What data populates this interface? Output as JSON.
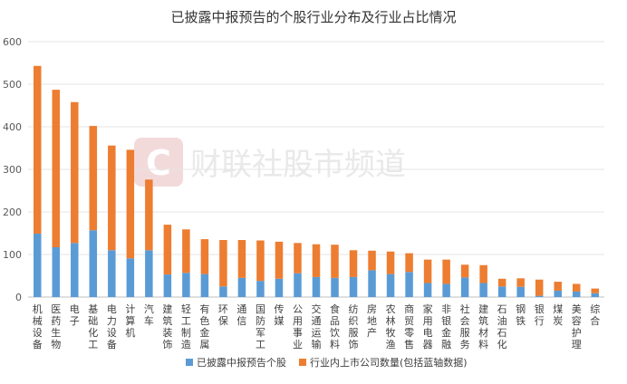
{
  "chart_data": {
    "type": "bar",
    "stacked": true,
    "title": "已披露中报预告的个股行业分布及行业占比情况",
    "ylim": [
      0,
      600
    ],
    "yticks": [
      0,
      100,
      200,
      300,
      400,
      500,
      600
    ],
    "categories": [
      "机械设备",
      "医药生物",
      "电子",
      "基础化工",
      "电力设备",
      "计算机",
      "汽车",
      "建筑装饰",
      "轻工制造",
      "有色金属",
      "环保",
      "通信",
      "国防军工",
      "传媒",
      "公用事业",
      "交通运输",
      "食品饮料",
      "纺织服饰",
      "房地产",
      "农林牧渔",
      "商贸零售",
      "家用电器",
      "非银金融",
      "社会服务",
      "建筑材料",
      "石油石化",
      "钢铁",
      "银行",
      "煤炭",
      "美容护理",
      "综合"
    ],
    "series": [
      {
        "name": "已披露中报预告个股",
        "color": "#5b9bd5",
        "values": [
          149,
          117,
          127,
          157,
          110,
          91,
          110,
          53,
          57,
          54,
          25,
          45,
          38,
          43,
          56,
          47,
          45,
          47,
          63,
          54,
          59,
          33,
          31,
          46,
          33,
          25,
          24,
          3,
          15,
          13,
          9
        ]
      },
      {
        "name": "行业内上市公司数量(包括蓝轴数据)",
        "color": "#ed7d31",
        "values": [
          394,
          370,
          331,
          245,
          246,
          255,
          166,
          117,
          102,
          82,
          109,
          89,
          95,
          87,
          71,
          77,
          78,
          63,
          46,
          53,
          44,
          55,
          57,
          30,
          42,
          18,
          20,
          38,
          21,
          18,
          11
        ]
      }
    ],
    "legend_position": "bottom",
    "grid": true
  },
  "watermark": {
    "logo_letter": "C",
    "text": "财联社股市频道"
  }
}
